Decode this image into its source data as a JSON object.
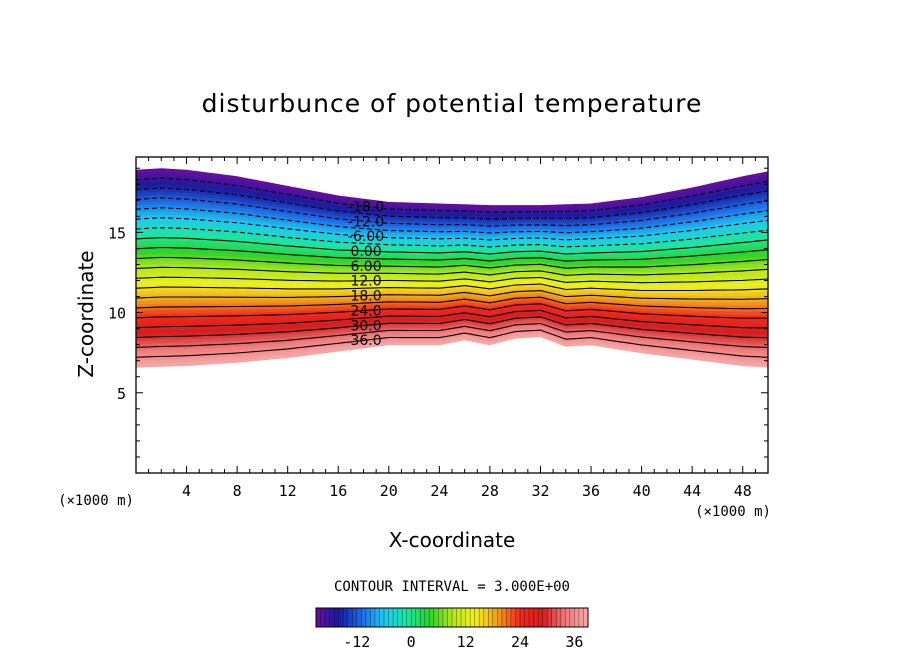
{
  "chart_data": {
    "type": "heatmap",
    "subtype": "filled-contour",
    "title": "disturbunce of potential temperature",
    "xlabel": "X-coordinate",
    "ylabel": "Z-coordinate",
    "x_unit": "(×1000 m)",
    "z_unit": "(×1000 m)",
    "xlim": [
      0,
      50
    ],
    "ylim": [
      0,
      19.7
    ],
    "x_ticks": [
      4,
      8,
      12,
      16,
      20,
      24,
      28,
      32,
      36,
      40,
      44,
      48
    ],
    "y_ticks": [
      5,
      10,
      15
    ],
    "contour_interval_label": "CONTOUR INTERVAL = 3.000E+00",
    "contour_interval": 3.0,
    "levels": [
      -18,
      -15,
      -12,
      -9,
      -6,
      -3,
      0,
      3,
      6,
      9,
      12,
      15,
      18,
      21,
      24,
      27,
      30,
      33,
      36
    ],
    "contour_labels": [
      "-18.0",
      "-12.0",
      "-6.00",
      "0.00",
      "6.00",
      "12.0",
      "18.0",
      "24.0",
      "30.0",
      "36.0"
    ],
    "negative_contours": "dashed",
    "field_top_profile": {
      "x": [
        0,
        2,
        4,
        8,
        12,
        16,
        20,
        24,
        28,
        32,
        36,
        40,
        44,
        48,
        50
      ],
      "z": [
        18.9,
        19.0,
        18.9,
        18.5,
        17.9,
        17.3,
        16.9,
        16.8,
        16.7,
        16.7,
        16.8,
        17.2,
        17.8,
        18.5,
        18.8
      ]
    },
    "field_bottom_profile": {
      "x": [
        0,
        4,
        8,
        12,
        16,
        20,
        24,
        26,
        28,
        30,
        32,
        34,
        36,
        40,
        44,
        48,
        50
      ],
      "z": [
        6.6,
        6.7,
        6.9,
        7.2,
        7.6,
        8.0,
        8.0,
        8.3,
        8.0,
        8.4,
        8.5,
        7.9,
        8.0,
        7.5,
        7.1,
        6.7,
        6.6
      ]
    },
    "colorbar": {
      "min": -21,
      "max": 39,
      "tick_values": [
        -12,
        0,
        12,
        24,
        36
      ],
      "tick_labels": [
        "-12",
        "0",
        "12",
        "24",
        "36"
      ]
    },
    "grid": false,
    "legend": "none",
    "colormap": [
      "#6a0d9e",
      "#1a1a9e",
      "#1e6ae6",
      "#1ec8f0",
      "#1ee6a0",
      "#2ad22a",
      "#b4e61e",
      "#f0f01e",
      "#f0a01e",
      "#f0281e",
      "#d21e1e",
      "#f07a7a",
      "#f5aaaa"
    ]
  }
}
